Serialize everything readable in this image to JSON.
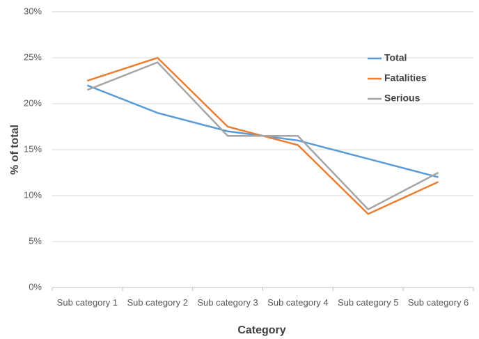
{
  "chart_data": {
    "type": "line",
    "x_label": "Category",
    "y_label": "% of total",
    "categories": [
      "Sub category 1",
      "Sub category 2",
      "Sub category 3",
      "Sub category 4",
      "Sub category 5",
      "Sub category 6"
    ],
    "series": [
      {
        "name": "Total",
        "color": "#5b9bd5",
        "values": [
          22,
          19,
          17,
          16,
          14,
          12
        ]
      },
      {
        "name": "Fatalities",
        "color": "#ed7d31",
        "values": [
          22.5,
          25,
          17.5,
          15.5,
          8,
          11.5
        ]
      },
      {
        "name": "Serious",
        "color": "#a5a5a5",
        "values": [
          21.5,
          24.5,
          16.5,
          16.5,
          8.5,
          12.5
        ]
      }
    ],
    "ylim": [
      0,
      30
    ],
    "yticks": [
      {
        "value": 0,
        "label": "0%"
      },
      {
        "value": 5,
        "label": "5%"
      },
      {
        "value": 10,
        "label": "10%"
      },
      {
        "value": 15,
        "label": "15%"
      },
      {
        "value": 20,
        "label": "20%"
      },
      {
        "value": 25,
        "label": "25%"
      },
      {
        "value": 30,
        "label": "30%"
      }
    ],
    "grid": true,
    "legend": "upper-right"
  }
}
